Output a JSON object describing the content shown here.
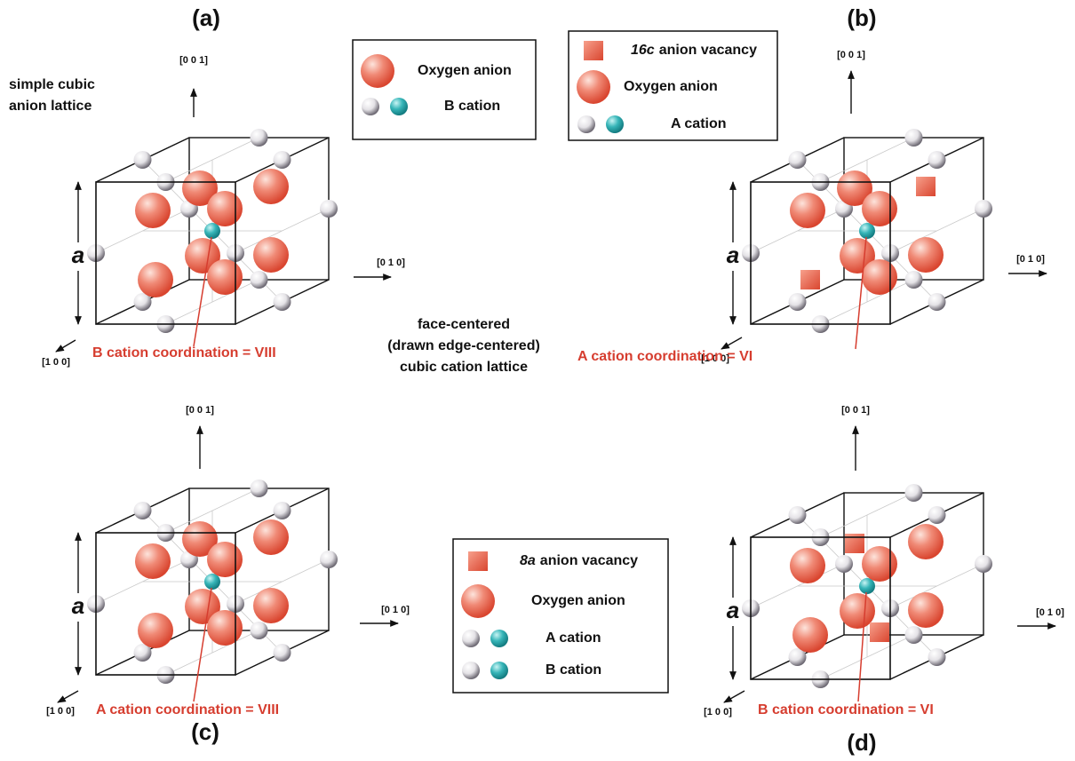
{
  "panels": [
    {
      "label": "(a)",
      "axes": {
        "z": "[0 0 1]",
        "y": "[0 1 0]",
        "x": "[1 0 0]"
      },
      "lattice_parameter": "a",
      "coordination": "B cation coordination = VIII"
    },
    {
      "label": "(b)",
      "axes": {
        "z": "[0 0 1]",
        "y": "[0 1 0]",
        "x": "[1 0 0]"
      },
      "lattice_parameter": "a",
      "coordination": "A cation coordination = VI"
    },
    {
      "label": "(c)",
      "axes": {
        "z": "[0 0 1]",
        "y": "[0 1 0]",
        "x": "[1 0 0]"
      },
      "lattice_parameter": "a",
      "coordination": "A cation coordination = VIII"
    },
    {
      "label": "(d)",
      "axes": {
        "z": "[0 0 1]",
        "y": "[0 1 0]",
        "x": "[1 0 0]"
      },
      "lattice_parameter": "a",
      "coordination": "B  cation coordination = VI"
    }
  ],
  "legends": [
    {
      "items": [
        {
          "label": "Oxygen anion"
        },
        {
          "label": "B cation"
        }
      ]
    },
    {
      "items": [
        {
          "emphasis": "16c",
          "label": "anion vacancy"
        },
        {
          "label": "Oxygen anion"
        },
        {
          "label": "A cation"
        }
      ]
    },
    {
      "items": [
        {
          "emphasis": "8a",
          "label": "anion vacancy"
        },
        {
          "label": "Oxygen anion"
        },
        {
          "label": "A cation"
        },
        {
          "label": "B cation"
        }
      ]
    }
  ],
  "annotations": [
    {
      "lines": [
        "simple cubic",
        "anion lattice"
      ]
    },
    {
      "lines": [
        "face-centered",
        "(drawn edge-centered)",
        "cubic cation lattice"
      ]
    }
  ]
}
